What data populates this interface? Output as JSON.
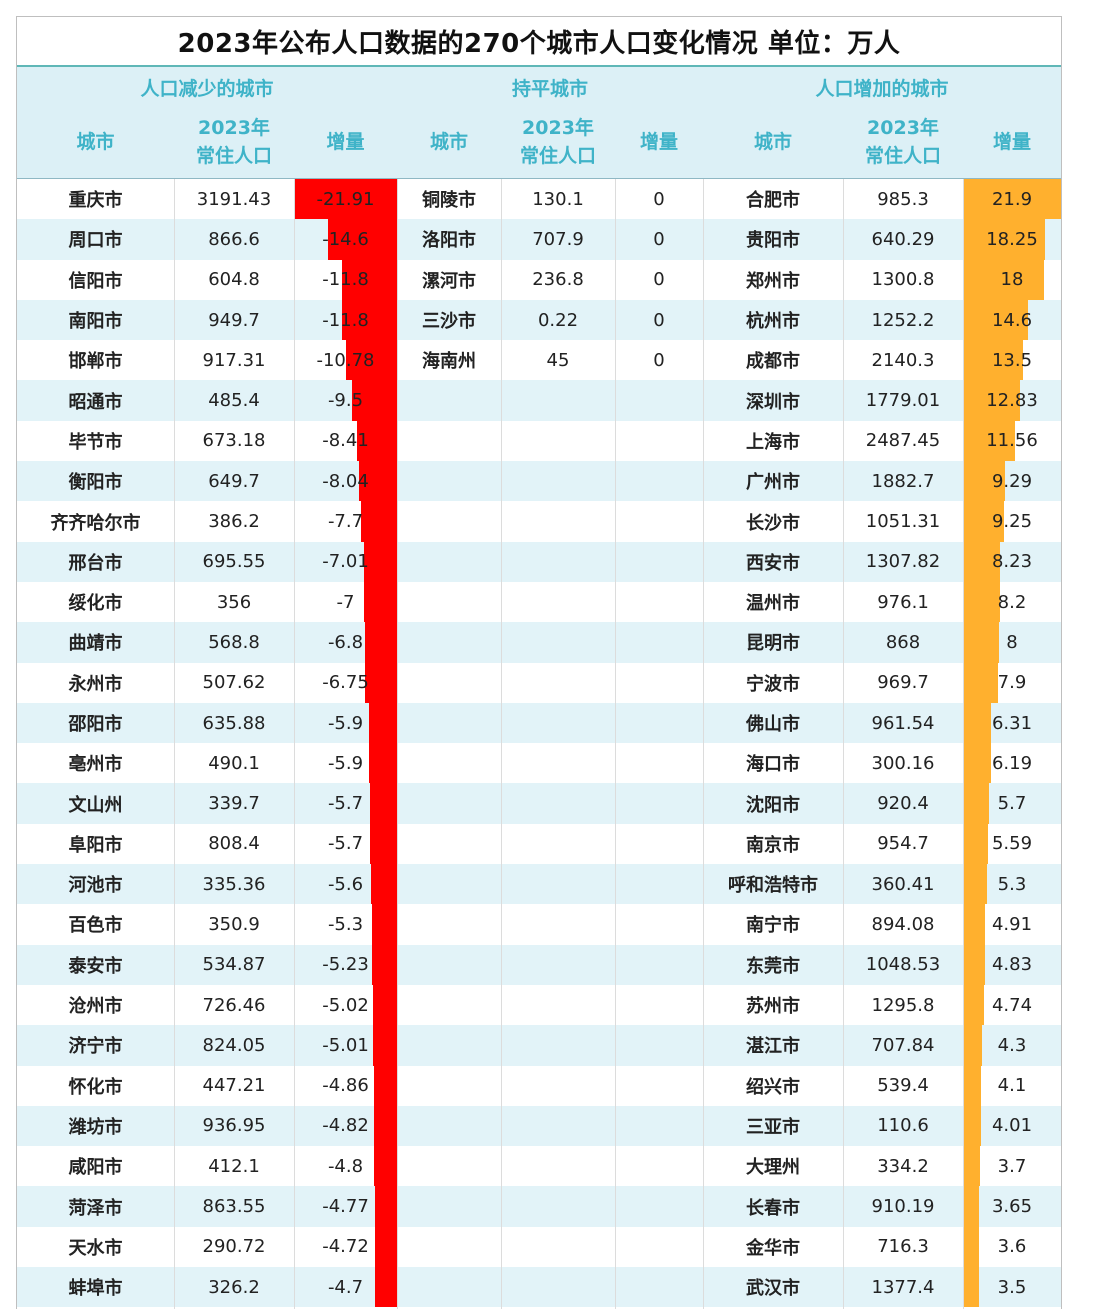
{
  "title": "2023年公布人口数据的270个城市人口变化情况   单位：万人",
  "groups": {
    "decrease": "人口减少的城市",
    "flat": "持平城市",
    "increase": "人口增加的城市"
  },
  "columns": {
    "city": "城市",
    "pop": "2023年\n常住人口",
    "change": "增量"
  },
  "decrease": [
    {
      "city": "重庆市",
      "pop": "3191.43",
      "change": "-21.91"
    },
    {
      "city": "周口市",
      "pop": "866.6",
      "change": "-14.6"
    },
    {
      "city": "信阳市",
      "pop": "604.8",
      "change": "-11.8"
    },
    {
      "city": "南阳市",
      "pop": "949.7",
      "change": "-11.8"
    },
    {
      "city": "邯郸市",
      "pop": "917.31",
      "change": "-10.78"
    },
    {
      "city": "昭通市",
      "pop": "485.4",
      "change": "-9.5"
    },
    {
      "city": "毕节市",
      "pop": "673.18",
      "change": "-8.41"
    },
    {
      "city": "衡阳市",
      "pop": "649.7",
      "change": "-8.04"
    },
    {
      "city": "齐齐哈尔市",
      "pop": "386.2",
      "change": "-7.7"
    },
    {
      "city": "邢台市",
      "pop": "695.55",
      "change": "-7.01"
    },
    {
      "city": "绥化市",
      "pop": "356",
      "change": "-7"
    },
    {
      "city": "曲靖市",
      "pop": "568.8",
      "change": "-6.8"
    },
    {
      "city": "永州市",
      "pop": "507.62",
      "change": "-6.75"
    },
    {
      "city": "邵阳市",
      "pop": "635.88",
      "change": "-5.9"
    },
    {
      "city": "亳州市",
      "pop": "490.1",
      "change": "-5.9"
    },
    {
      "city": "文山州",
      "pop": "339.7",
      "change": "-5.7"
    },
    {
      "city": "阜阳市",
      "pop": "808.4",
      "change": "-5.7"
    },
    {
      "city": "河池市",
      "pop": "335.36",
      "change": "-5.6"
    },
    {
      "city": "百色市",
      "pop": "350.9",
      "change": "-5.3"
    },
    {
      "city": "泰安市",
      "pop": "534.87",
      "change": "-5.23"
    },
    {
      "city": "沧州市",
      "pop": "726.46",
      "change": "-5.02"
    },
    {
      "city": "济宁市",
      "pop": "824.05",
      "change": "-5.01"
    },
    {
      "city": "怀化市",
      "pop": "447.21",
      "change": "-4.86"
    },
    {
      "city": "潍坊市",
      "pop": "936.95",
      "change": "-4.82"
    },
    {
      "city": "咸阳市",
      "pop": "412.1",
      "change": "-4.8"
    },
    {
      "city": "菏泽市",
      "pop": "863.55",
      "change": "-4.77"
    },
    {
      "city": "天水市",
      "pop": "290.72",
      "change": "-4.72"
    },
    {
      "city": "蚌埠市",
      "pop": "326.2",
      "change": "-4.7"
    }
  ],
  "flat": [
    {
      "city": "铜陵市",
      "pop": "130.1",
      "change": "0"
    },
    {
      "city": "洛阳市",
      "pop": "707.9",
      "change": "0"
    },
    {
      "city": "漯河市",
      "pop": "236.8",
      "change": "0"
    },
    {
      "city": "三沙市",
      "pop": "0.22",
      "change": "0"
    },
    {
      "city": "海南州",
      "pop": "45",
      "change": "0"
    }
  ],
  "increase": [
    {
      "city": "合肥市",
      "pop": "985.3",
      "change": "21.9"
    },
    {
      "city": "贵阳市",
      "pop": "640.29",
      "change": "18.25"
    },
    {
      "city": "郑州市",
      "pop": "1300.8",
      "change": "18"
    },
    {
      "city": "杭州市",
      "pop": "1252.2",
      "change": "14.6"
    },
    {
      "city": "成都市",
      "pop": "2140.3",
      "change": "13.5"
    },
    {
      "city": "深圳市",
      "pop": "1779.01",
      "change": "12.83"
    },
    {
      "city": "上海市",
      "pop": "2487.45",
      "change": "11.56"
    },
    {
      "city": "广州市",
      "pop": "1882.7",
      "change": "9.29"
    },
    {
      "city": "长沙市",
      "pop": "1051.31",
      "change": "9.25"
    },
    {
      "city": "西安市",
      "pop": "1307.82",
      "change": "8.23"
    },
    {
      "city": "温州市",
      "pop": "976.1",
      "change": "8.2"
    },
    {
      "city": "昆明市",
      "pop": "868",
      "change": "8"
    },
    {
      "city": "宁波市",
      "pop": "969.7",
      "change": "7.9"
    },
    {
      "city": "佛山市",
      "pop": "961.54",
      "change": "6.31"
    },
    {
      "city": "海口市",
      "pop": "300.16",
      "change": "6.19"
    },
    {
      "city": "沈阳市",
      "pop": "920.4",
      "change": "5.7"
    },
    {
      "city": "南京市",
      "pop": "954.7",
      "change": "5.59"
    },
    {
      "city": "呼和浩特市",
      "pop": "360.41",
      "change": "5.3"
    },
    {
      "city": "南宁市",
      "pop": "894.08",
      "change": "4.91"
    },
    {
      "city": "东莞市",
      "pop": "1048.53",
      "change": "4.83"
    },
    {
      "city": "苏州市",
      "pop": "1295.8",
      "change": "4.74"
    },
    {
      "city": "湛江市",
      "pop": "707.84",
      "change": "4.3"
    },
    {
      "city": "绍兴市",
      "pop": "539.4",
      "change": "4.1"
    },
    {
      "city": "三亚市",
      "pop": "110.6",
      "change": "4.01"
    },
    {
      "city": "大理州",
      "pop": "334.2",
      "change": "3.7"
    },
    {
      "city": "长春市",
      "pop": "910.19",
      "change": "3.65"
    },
    {
      "city": "金华市",
      "pop": "716.3",
      "change": "3.6"
    },
    {
      "city": "武汉市",
      "pop": "1377.4",
      "change": "3.5"
    }
  ],
  "colors": {
    "negative_bar": "#ff0000",
    "positive_bar": "#ffb02e",
    "header_text": "#3fb3c8",
    "header_bg": "#dcf0f6",
    "stripe": "#e2f3f8"
  }
}
